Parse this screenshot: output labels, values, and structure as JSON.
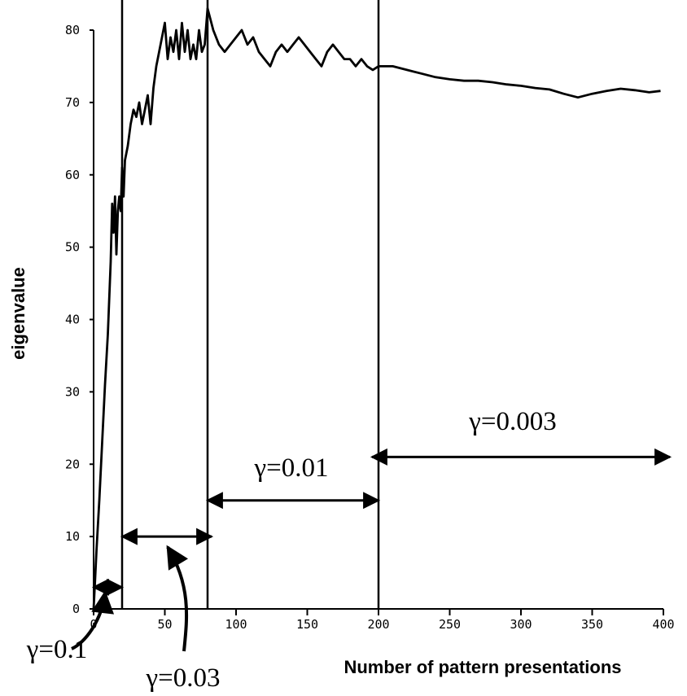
{
  "chart_data": {
    "type": "line",
    "title": "",
    "xlabel": "Number of pattern presentations",
    "ylabel": "eigenvalue",
    "xlim": [
      0,
      400
    ],
    "ylim": [
      0,
      80
    ],
    "x_ticks": [
      0,
      50,
      100,
      150,
      200,
      250,
      300,
      350,
      400
    ],
    "y_ticks": [
      0,
      10,
      20,
      30,
      40,
      50,
      60,
      70,
      80
    ],
    "grid": false,
    "series": [
      {
        "values": [
          [
            0,
            0
          ],
          [
            1,
            4
          ],
          [
            2,
            8
          ],
          [
            4,
            15
          ],
          [
            6,
            23
          ],
          [
            8,
            31
          ],
          [
            10,
            38
          ],
          [
            12,
            48
          ],
          [
            13,
            56
          ],
          [
            14,
            52
          ],
          [
            15,
            57
          ],
          [
            16,
            49
          ],
          [
            17,
            55
          ],
          [
            18,
            57
          ],
          [
            19,
            55
          ],
          [
            20,
            61
          ],
          [
            21,
            57
          ],
          [
            22,
            62
          ],
          [
            24,
            64
          ],
          [
            26,
            67
          ],
          [
            28,
            69
          ],
          [
            30,
            68
          ],
          [
            32,
            70
          ],
          [
            34,
            67
          ],
          [
            36,
            69
          ],
          [
            38,
            71
          ],
          [
            40,
            67
          ],
          [
            42,
            72
          ],
          [
            44,
            75
          ],
          [
            46,
            77
          ],
          [
            48,
            79
          ],
          [
            50,
            81
          ],
          [
            52,
            76
          ],
          [
            54,
            79
          ],
          [
            56,
            77
          ],
          [
            58,
            80
          ],
          [
            60,
            76
          ],
          [
            62,
            81
          ],
          [
            64,
            77
          ],
          [
            66,
            80
          ],
          [
            68,
            76
          ],
          [
            70,
            78
          ],
          [
            72,
            76
          ],
          [
            74,
            80
          ],
          [
            76,
            77
          ],
          [
            78,
            78
          ],
          [
            80,
            83
          ],
          [
            84,
            80
          ],
          [
            88,
            78
          ],
          [
            92,
            77
          ],
          [
            96,
            78
          ],
          [
            100,
            79
          ],
          [
            104,
            80
          ],
          [
            108,
            78
          ],
          [
            112,
            79
          ],
          [
            116,
            77
          ],
          [
            120,
            76
          ],
          [
            124,
            75
          ],
          [
            128,
            77
          ],
          [
            132,
            78
          ],
          [
            136,
            77
          ],
          [
            140,
            78
          ],
          [
            144,
            79
          ],
          [
            148,
            78
          ],
          [
            152,
            77
          ],
          [
            156,
            76
          ],
          [
            160,
            75
          ],
          [
            164,
            77
          ],
          [
            168,
            78
          ],
          [
            172,
            77
          ],
          [
            176,
            76
          ],
          [
            180,
            76
          ],
          [
            184,
            75
          ],
          [
            188,
            76
          ],
          [
            192,
            75
          ],
          [
            196,
            74.5
          ],
          [
            200,
            75
          ],
          [
            210,
            75
          ],
          [
            220,
            74.5
          ],
          [
            230,
            74
          ],
          [
            240,
            73.5
          ],
          [
            250,
            73.2
          ],
          [
            260,
            73
          ],
          [
            270,
            73
          ],
          [
            280,
            72.8
          ],
          [
            290,
            72.5
          ],
          [
            300,
            72.3
          ],
          [
            310,
            72
          ],
          [
            320,
            71.8
          ],
          [
            330,
            71.2
          ],
          [
            340,
            70.7
          ],
          [
            350,
            71.2
          ],
          [
            360,
            71.6
          ],
          [
            370,
            71.9
          ],
          [
            380,
            71.7
          ],
          [
            390,
            71.4
          ],
          [
            398,
            71.6
          ]
        ]
      }
    ],
    "phase_boundaries": [
      20,
      80,
      200
    ],
    "annotations": [
      {
        "label": "γ=0.1",
        "x_from": 0,
        "x_to": 20,
        "y": 3
      },
      {
        "label": "γ=0.03",
        "x_from": 20,
        "x_to": 80,
        "y": 10
      },
      {
        "label": "γ=0.01",
        "x_from": 80,
        "x_to": 200,
        "y": 15
      },
      {
        "label": "γ=0.003",
        "x_from": 200,
        "x_to": 400,
        "y": 21
      }
    ]
  }
}
